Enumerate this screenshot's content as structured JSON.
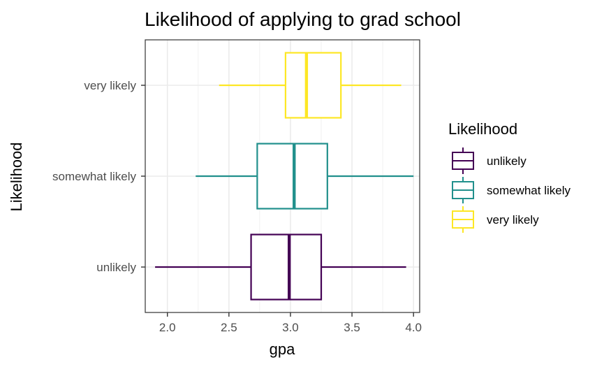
{
  "chart_data": {
    "type": "boxplot",
    "orientation": "horizontal",
    "title": "Likelihood of applying to grad school",
    "xlabel": "gpa",
    "ylabel": "Likelihood",
    "xlim": [
      1.82,
      4.05
    ],
    "xticks": [
      2.0,
      2.5,
      3.0,
      3.5,
      4.0
    ],
    "xtick_labels": [
      "2.0",
      "2.5",
      "3.0",
      "3.5",
      "4.0"
    ],
    "grid": true,
    "legend": {
      "title": "Likelihood",
      "position": "right",
      "entries": [
        "unlikely",
        "somewhat likely",
        "very likely"
      ]
    },
    "categories": [
      "unlikely",
      "somewhat likely",
      "very likely"
    ],
    "series": [
      {
        "name": "unlikely",
        "color": "#440154",
        "min": 1.9,
        "q1": 2.68,
        "median": 2.99,
        "q3": 3.25,
        "max": 3.94
      },
      {
        "name": "somewhat likely",
        "color": "#21908C",
        "min": 2.23,
        "q1": 2.73,
        "median": 3.03,
        "q3": 3.3,
        "max": 4.0
      },
      {
        "name": "very likely",
        "color": "#FDE725",
        "min": 2.42,
        "q1": 2.96,
        "median": 3.13,
        "q3": 3.41,
        "max": 3.9
      }
    ]
  }
}
